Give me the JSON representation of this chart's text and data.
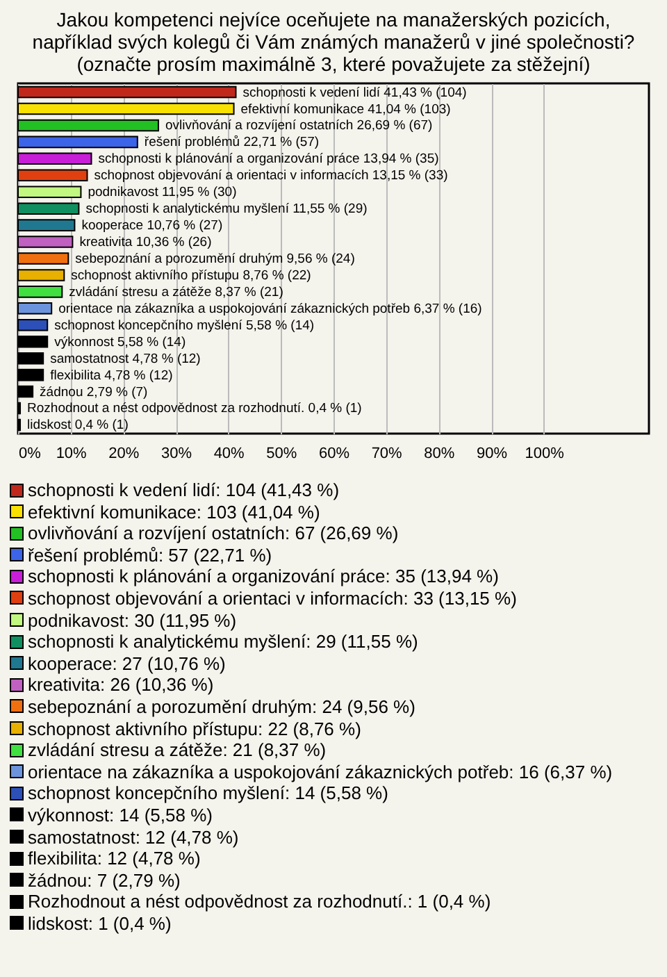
{
  "chart_data": {
    "type": "bar",
    "orientation": "horizontal",
    "title": [
      "Jakou kompetenci nejvíce oceňujete na manažerských pozicích,",
      "například svých kolegů či Vám známých manažerů v jiné společnosti?",
      "(označte prosím maximálně 3, které považujete za stěžejní)"
    ],
    "categories": [
      "schopnosti k vedení lidí",
      "efektivní komunikace",
      "ovlivňování a rozvíjení ostatních",
      "řešení problémů",
      "schopnosti k plánování a organizování práce",
      "schopnost objevování a orientaci v informacích",
      "podnikavost",
      "schopnosti k analytickému myšlení",
      "kooperace",
      "kreativita",
      "sebepoznání a porozumění druhým",
      "schopnost aktivního přístupu",
      "zvládání stresu a zátěže",
      "orientace na zákazníka a uspokojování zákaznických potřeb",
      "schopnost koncepčního myšlení",
      "výkonnost",
      "samostatnost",
      "flexibilita",
      "žádnou",
      "Rozhodnout a nést odpovědnost za rozhodnutí.",
      "lidskost"
    ],
    "values": [
      41.43,
      41.04,
      26.69,
      22.71,
      13.94,
      13.15,
      11.95,
      11.55,
      10.76,
      10.36,
      9.56,
      8.76,
      8.37,
      6.37,
      5.58,
      5.58,
      4.78,
      4.78,
      2.79,
      0.4,
      0.4
    ],
    "value_labels": [
      "41,43 % (104)",
      "41,04 % (103)",
      "26,69 % (67)",
      "22,71 % (57)",
      "13,94 % (35)",
      "13,15 % (33)",
      "11,95 % (30)",
      "11,55 % (29)",
      "10,76 % (27)",
      "10,36 % (26)",
      "9,56 % (24)",
      "8,76 % (22)",
      "8,37 % (21)",
      "6,37 % (16)",
      "5,58 % (14)",
      "5,58 % (14)",
      "4,78 % (12)",
      "4,78 % (12)",
      "2,79 % (7)",
      "0,4 % (1)",
      "0,4 % (1)"
    ],
    "colors": [
      "#c0281c",
      "#f8e000",
      "#22c022",
      "#3c64e8",
      "#c81ed8",
      "#e04010",
      "#c0f880",
      "#109060",
      "#207890",
      "#c060c0",
      "#f07010",
      "#e8b000",
      "#40e040",
      "#6c94dc",
      "#2c50b8",
      "#000000",
      "#000000",
      "#000000",
      "#000000",
      "#000000",
      "#000000"
    ],
    "annotations": [
      "schopnosti k vedení lidí: 104 (41,43 %)",
      "efektivní komunikace: 103 (41,04 %)",
      "ovlivňování a rozvíjení ostatních: 67 (26,69 %)",
      "řešení problémů: 57 (22,71 %)",
      "schopnosti k plánování a organizování práce: 35 (13,94 %)",
      "schopnost objevování a orientaci v informacích: 33 (13,15 %)",
      "podnikavost: 30 (11,95 %)",
      "schopnosti k analytickému myšlení: 29 (11,55 %)",
      "kooperace: 27 (10,76 %)",
      "kreativita: 26 (10,36 %)",
      "sebepoznání a porozumění druhým: 24 (9,56 %)",
      "schopnost aktivního přístupu: 22 (8,76 %)",
      "zvládání stresu a zátěže: 21 (8,37 %)",
      "orientace na zákazníka a uspokojování zákaznických potřeb: 16 (6,37 %)",
      "schopnost koncepčního myšlení: 14 (5,58 %)",
      "výkonnost: 14 (5,58 %)",
      "samostatnost: 12 (4,78 %)",
      "flexibilita: 12 (4,78 %)",
      "žádnou: 7 (2,79 %)",
      "Rozhodnout a nést odpovědnost za rozhodnutí.: 1 (0,4 %)",
      "lidskost: 1 (0,4 %)"
    ],
    "xlim": [
      0,
      120
    ],
    "xticks": [
      {
        "value": 0,
        "label": "0%"
      },
      {
        "value": 10,
        "label": "10%"
      },
      {
        "value": 20,
        "label": "20%"
      },
      {
        "value": 30,
        "label": "30%"
      },
      {
        "value": 40,
        "label": "40%"
      },
      {
        "value": 50,
        "label": "50%"
      },
      {
        "value": 60,
        "label": "60%"
      },
      {
        "value": 70,
        "label": "70%"
      },
      {
        "value": 80,
        "label": "80%"
      },
      {
        "value": 90,
        "label": "90%"
      },
      {
        "value": 100,
        "label": "100%"
      }
    ],
    "grid": "x",
    "tick_labels": "x"
  }
}
